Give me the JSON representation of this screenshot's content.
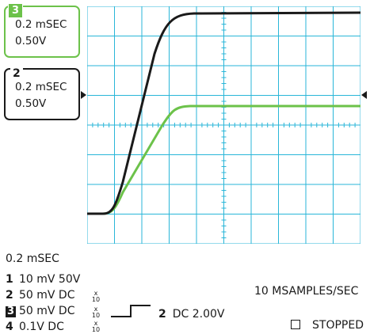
{
  "channel_boxes": {
    "ch3": {
      "badge": "3",
      "time": "0.2 mSEC",
      "volts": "0.50V",
      "color": "#6cc24a"
    },
    "ch2": {
      "tag": "2",
      "time": "0.2 mSEC",
      "volts": "0.50V",
      "color": "#1a1a1a"
    }
  },
  "timebase": "0.2 mSEC",
  "channels": [
    {
      "num": "1",
      "setting": "10 mV 50V",
      "probe": ""
    },
    {
      "num": "2",
      "setting": "50 mV DC",
      "probe": "x 10"
    },
    {
      "num": "3",
      "setting": "50 mV DC",
      "probe": "x 10"
    },
    {
      "num": "4",
      "setting": "0.1V DC",
      "probe": "x 10"
    }
  ],
  "trigger": {
    "source": "2",
    "level": "DC 2.00V"
  },
  "sample_rate": "10 MSAMPLES/SEC",
  "status": "STOPPED",
  "waveforms": [
    {
      "channel": "2",
      "color": "#1a1a1a",
      "shape": "step-response"
    },
    {
      "channel": "3",
      "color": "#6cc24a",
      "shape": "step-response"
    }
  ],
  "grid": {
    "color": "#29b6d8",
    "divisions_x": 10,
    "divisions_y": 8
  }
}
